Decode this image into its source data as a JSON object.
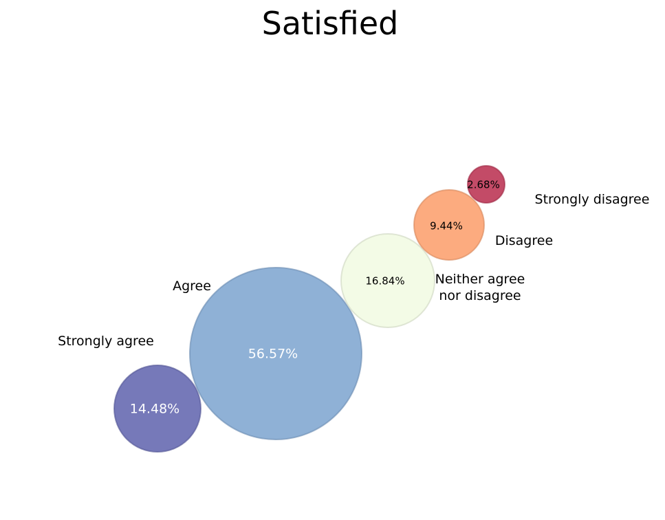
{
  "chart_data": {
    "type": "bubble",
    "title": "Satisfied",
    "categories": [
      "Strongly agree",
      "Agree",
      "Neither agree\nnor disagree",
      "Disagree",
      "Strongly disagree"
    ],
    "values": [
      14.48,
      56.57,
      16.84,
      9.44,
      2.68
    ],
    "value_labels": [
      "14.48%",
      "56.57%",
      "16.84%",
      "9.44%",
      "2.68%"
    ],
    "colors": [
      "#5e62ad",
      "#7ba3cf",
      "#f1fae2",
      "#fb9c69",
      "#b82c4c"
    ],
    "value_label_colors": [
      "#ffffff",
      "#ffffff",
      "#000000",
      "#000000",
      "#000000"
    ],
    "legend": "none",
    "grid": false
  }
}
